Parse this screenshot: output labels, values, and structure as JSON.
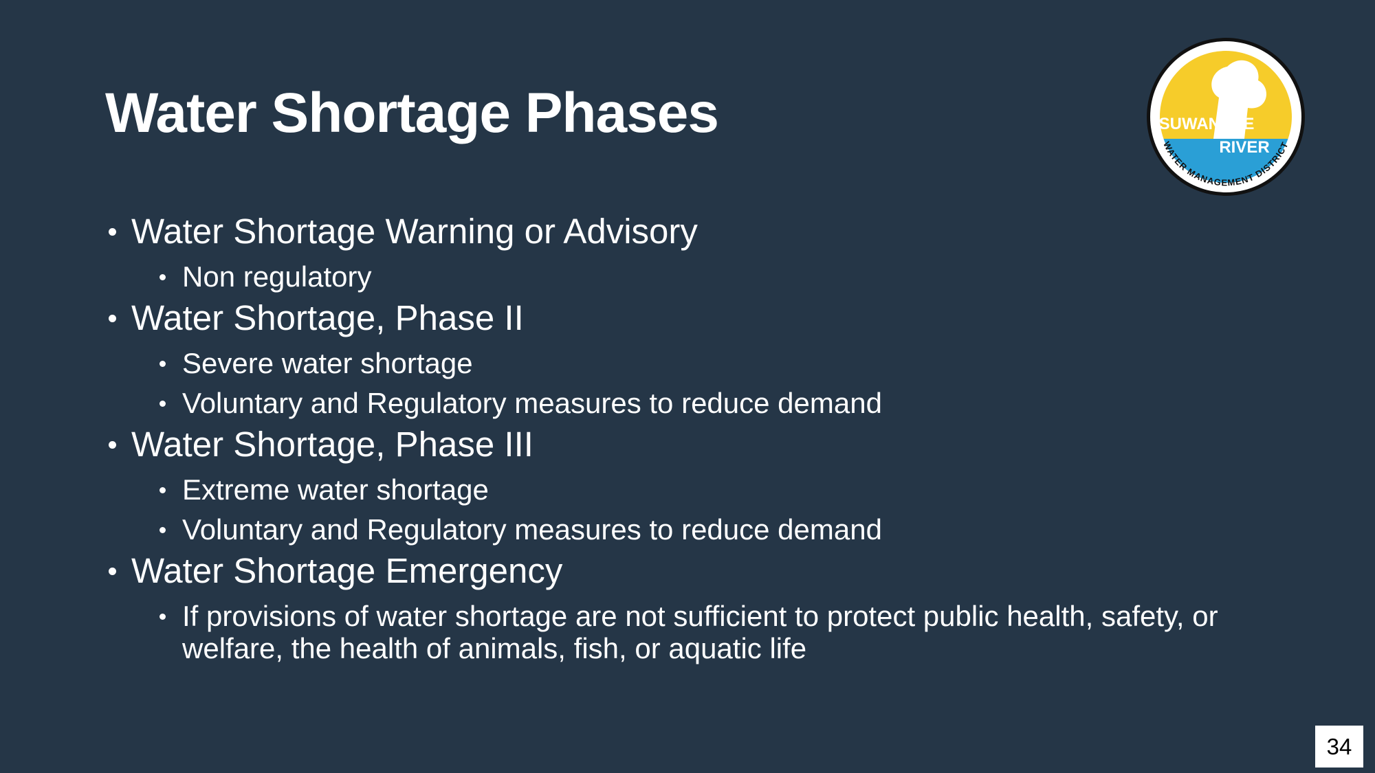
{
  "title": "Water Shortage Phases",
  "bullets": [
    {
      "text": "Water Shortage Warning or Advisory",
      "items": [
        "Non regulatory"
      ]
    },
    {
      "text": "Water Shortage, Phase II",
      "items": [
        "Severe water shortage",
        "Voluntary and Regulatory measures to reduce demand"
      ]
    },
    {
      "text": "Water Shortage, Phase III",
      "items": [
        "Extreme water shortage",
        "Voluntary and Regulatory measures to reduce demand"
      ]
    },
    {
      "text": "Water Shortage Emergency",
      "items": [
        "If provisions of water shortage are not sufficient to protect public health, safety, or welfare, the health of animals, fish, or aquatic life"
      ]
    }
  ],
  "logo": {
    "line1": "SUWANNEE",
    "line2": "RIVER",
    "ring": "WATER MANAGEMENT DISTRICT"
  },
  "page_number": "34"
}
